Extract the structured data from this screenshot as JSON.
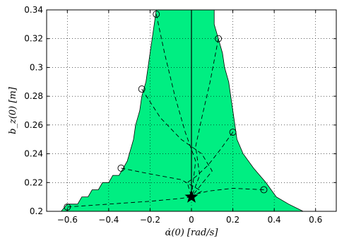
{
  "chart_data": {
    "type": "scatter",
    "title": "",
    "xlabel": "α̇(0) [rad/s]",
    "ylabel": "b_z(0) [m]",
    "xlim": [
      -0.7,
      0.7
    ],
    "ylim": [
      0.2,
      0.34
    ],
    "xticks": [
      -0.6,
      -0.4,
      -0.2,
      0,
      0.2,
      0.4,
      0.6
    ],
    "xtick_labels": [
      "−0.6",
      "−0.4",
      "−0.2",
      "0",
      "0.2",
      "0.4",
      "0.6"
    ],
    "yticks": [
      0.2,
      0.22,
      0.24,
      0.26,
      0.28,
      0.3,
      0.32,
      0.34
    ],
    "ytick_labels": [
      "0.2",
      "0.22",
      "0.24",
      "0.26",
      "0.28",
      "0.3",
      "0.32",
      "0.34"
    ],
    "grid": true,
    "region_color": "#00ee82",
    "region": [
      [
        -0.63,
        0.2
      ],
      [
        -0.6,
        0.205
      ],
      [
        -0.55,
        0.205
      ],
      [
        -0.53,
        0.21
      ],
      [
        -0.5,
        0.21
      ],
      [
        -0.48,
        0.215
      ],
      [
        -0.45,
        0.215
      ],
      [
        -0.43,
        0.22
      ],
      [
        -0.4,
        0.22
      ],
      [
        -0.38,
        0.225
      ],
      [
        -0.35,
        0.225
      ],
      [
        -0.33,
        0.23
      ],
      [
        -0.31,
        0.235
      ],
      [
        -0.3,
        0.24
      ],
      [
        -0.28,
        0.25
      ],
      [
        -0.27,
        0.26
      ],
      [
        -0.25,
        0.27
      ],
      [
        -0.24,
        0.28
      ],
      [
        -0.22,
        0.29
      ],
      [
        -0.21,
        0.3
      ],
      [
        -0.2,
        0.31
      ],
      [
        -0.19,
        0.32
      ],
      [
        -0.18,
        0.33
      ],
      [
        -0.17,
        0.34
      ],
      [
        0.11,
        0.34
      ],
      [
        0.11,
        0.33
      ],
      [
        0.13,
        0.32
      ],
      [
        0.15,
        0.31
      ],
      [
        0.16,
        0.3
      ],
      [
        0.18,
        0.29
      ],
      [
        0.19,
        0.28
      ],
      [
        0.2,
        0.27
      ],
      [
        0.21,
        0.26
      ],
      [
        0.22,
        0.25
      ],
      [
        0.25,
        0.24
      ],
      [
        0.3,
        0.23
      ],
      [
        0.36,
        0.22
      ],
      [
        0.41,
        0.21
      ],
      [
        0.47,
        0.205
      ],
      [
        0.54,
        0.2
      ]
    ],
    "series": [
      {
        "marker": "circle",
        "points": [
          [
            -0.17,
            0.337
          ],
          [
            0.13,
            0.32
          ],
          [
            -0.24,
            0.285
          ],
          [
            0.2,
            0.255
          ],
          [
            -0.34,
            0.23
          ],
          [
            0.35,
            0.215
          ],
          [
            -0.6,
            0.203
          ]
        ]
      }
    ],
    "trajectories": [
      [
        [
          -0.17,
          0.337
        ],
        [
          -0.13,
          0.31
        ],
        [
          -0.08,
          0.28
        ],
        [
          -0.03,
          0.255
        ],
        [
          0.02,
          0.235
        ],
        [
          0,
          0.21
        ]
      ],
      [
        [
          0.13,
          0.32
        ],
        [
          0.09,
          0.29
        ],
        [
          0.05,
          0.265
        ],
        [
          0.02,
          0.245
        ],
        [
          0.04,
          0.225
        ],
        [
          0,
          0.21
        ]
      ],
      [
        [
          -0.24,
          0.285
        ],
        [
          -0.15,
          0.265
        ],
        [
          -0.05,
          0.25
        ],
        [
          0.05,
          0.24
        ],
        [
          0.1,
          0.228
        ],
        [
          0,
          0.21
        ]
      ],
      [
        [
          0.2,
          0.255
        ],
        [
          0.14,
          0.243
        ],
        [
          0.08,
          0.232
        ],
        [
          0.02,
          0.224
        ],
        [
          -0.02,
          0.22
        ],
        [
          0,
          0.21
        ]
      ],
      [
        [
          -0.34,
          0.23
        ],
        [
          -0.2,
          0.226
        ],
        [
          -0.05,
          0.222
        ],
        [
          0.05,
          0.214
        ],
        [
          0,
          0.21
        ]
      ],
      [
        [
          0.35,
          0.215
        ],
        [
          0.2,
          0.216
        ],
        [
          0.08,
          0.214
        ],
        [
          0.02,
          0.212
        ],
        [
          0,
          0.21
        ]
      ],
      [
        [
          -0.6,
          0.203
        ],
        [
          -0.4,
          0.205
        ],
        [
          -0.2,
          0.207
        ],
        [
          -0.05,
          0.209
        ],
        [
          0,
          0.21
        ]
      ]
    ],
    "target": [
      0,
      0.21
    ],
    "vertical_line": {
      "x": 0,
      "y_from": 0.21,
      "y_to": 0.34
    }
  }
}
